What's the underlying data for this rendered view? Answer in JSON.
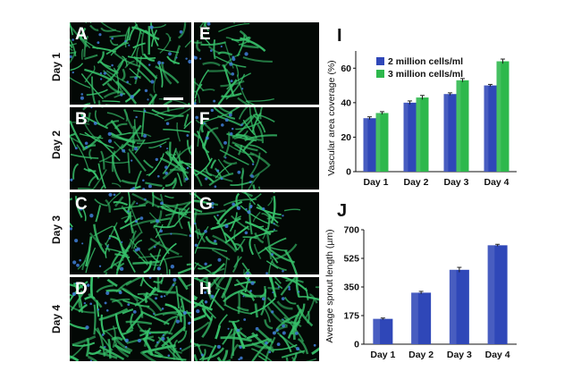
{
  "panels": [
    {
      "label": "A"
    },
    {
      "label": "E"
    },
    {
      "label": "B"
    },
    {
      "label": "F"
    },
    {
      "label": "C"
    },
    {
      "label": "G"
    },
    {
      "label": "D"
    },
    {
      "label": "H"
    }
  ],
  "row_labels": [
    "Day 1",
    "Day 2",
    "Day 3",
    "Day 4"
  ],
  "colors": {
    "series1": "#2f47b8",
    "series2": "#2db84c",
    "fiber": "#37c06a",
    "nuclei": "#3f7fd8",
    "tissue_bg": "#030805"
  },
  "chart_data": [
    {
      "type": "bar",
      "panel_label": "I",
      "title": "",
      "xlabel": "",
      "ylabel": "Vascular area coverage (%)",
      "categories": [
        "Day 1",
        "Day 2",
        "Day 3",
        "Day 4"
      ],
      "series": [
        {
          "name": "2 million cells/ml",
          "values": [
            31,
            40,
            45,
            50
          ],
          "errors": [
            0.8,
            1.0,
            0.7,
            0.6
          ]
        },
        {
          "name": "3 million cells/ml",
          "values": [
            34,
            43,
            53,
            64
          ],
          "errors": [
            0.8,
            1.2,
            1.0,
            1.3
          ]
        }
      ],
      "ylim": [
        0,
        70
      ],
      "yticks": [
        0,
        20,
        40,
        60
      ],
      "grid": false,
      "legend": "top-left"
    },
    {
      "type": "bar",
      "panel_label": "J",
      "title": "",
      "xlabel": "",
      "ylabel": "Average sprout length (µm)",
      "categories": [
        "Day 1",
        "Day 2",
        "Day 3",
        "Day 4"
      ],
      "series": [
        {
          "values": [
            155,
            315,
            455,
            605
          ],
          "errors": [
            5,
            8,
            15,
            6
          ]
        }
      ],
      "ylim": [
        0,
        700
      ],
      "yticks": [
        0,
        175,
        350,
        525,
        700
      ],
      "grid": false
    }
  ]
}
